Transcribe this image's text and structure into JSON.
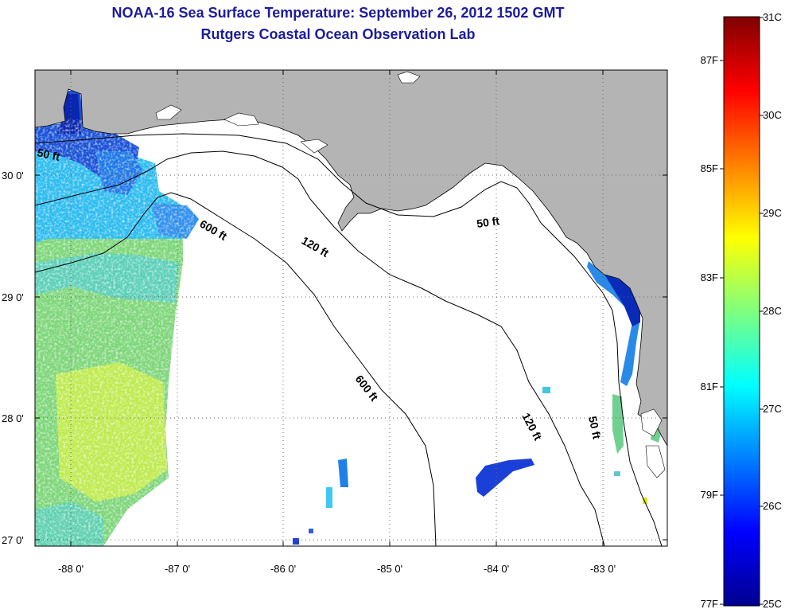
{
  "header": {
    "title": "NOAA-16 Sea Surface Temperature:  September 26, 2012 1502 GMT",
    "subtitle": "Rutgers Coastal Ocean Observation Lab"
  },
  "map": {
    "lon_ticks": [
      "-88 0'",
      "-87 0'",
      "-86 0'",
      "-85 0'",
      "-84 0'",
      "-83 0'"
    ],
    "lat_ticks": [
      "30 0'",
      "29 0'",
      "28 0'",
      "27 0'"
    ],
    "contour_labels": [
      "50 ft",
      "600 ft",
      "120 ft",
      "50 ft",
      "600 ft",
      "120 ft",
      "50 ft"
    ],
    "colors": {
      "land": "#b4b4b4",
      "ocean_nodata": "#ffffff",
      "contour": "#000000"
    }
  },
  "colorbar": {
    "celsius": [
      "31C",
      "30C",
      "29C",
      "28C",
      "27C",
      "26C",
      "25C"
    ],
    "fahrenheit": [
      "87F",
      "85F",
      "83F",
      "81F",
      "79F",
      "77F"
    ]
  }
}
